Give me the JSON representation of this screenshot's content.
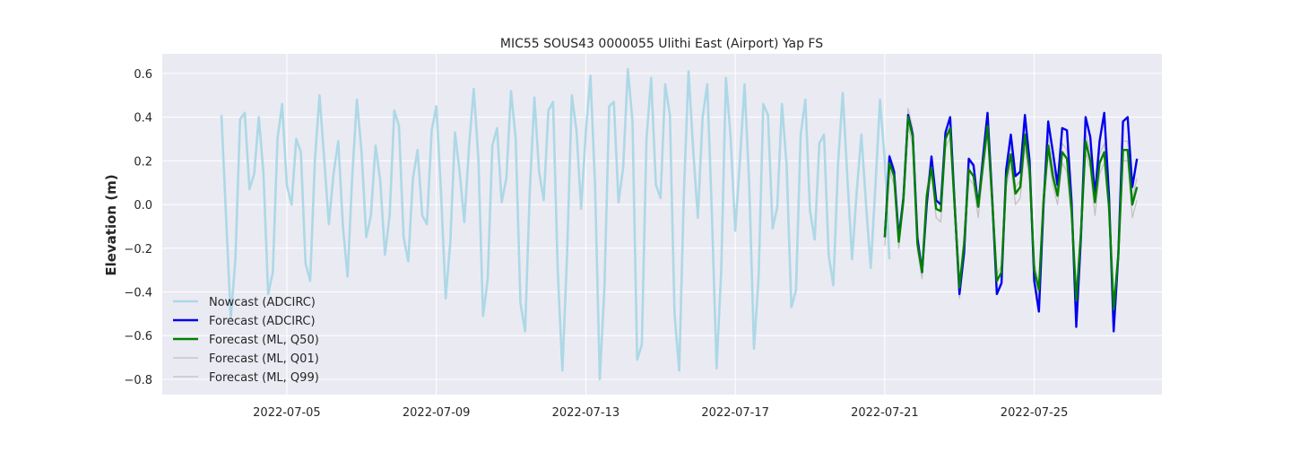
{
  "chart_data": {
    "type": "line",
    "title": "MIC55 SOUS43 0000055 Ulithi East (Airport) Yap FS",
    "xlabel": "",
    "ylabel": "Elevation (m)",
    "xlim": [
      "2022-07-01T16:00",
      "2022-07-28T10:00"
    ],
    "ylim": [
      -0.87,
      0.69
    ],
    "grid": true,
    "legend_position": "lower-left",
    "x_ticks": [
      "2022-07-05",
      "2022-07-09",
      "2022-07-13",
      "2022-07-17",
      "2022-07-21",
      "2022-07-25"
    ],
    "y_ticks": [
      -0.8,
      -0.6,
      -0.4,
      -0.2,
      0.0,
      0.2,
      0.4,
      0.6
    ],
    "y_tick_labels": [
      "−0.8",
      "−0.6",
      "−0.4",
      "−0.2",
      "0.0",
      "0.2",
      "0.4",
      "0.6"
    ],
    "series": [
      {
        "name": "Nowcast (ADCIRC)",
        "color": "#add8e6",
        "start": "2022-07-03T06:00",
        "step_hours": 3,
        "values": [
          0.41,
          -0.06,
          -0.52,
          -0.25,
          0.39,
          0.42,
          0.07,
          0.14,
          0.4,
          0.14,
          -0.41,
          -0.31,
          0.3,
          0.46,
          0.09,
          0.0,
          0.3,
          0.24,
          -0.27,
          -0.35,
          0.2,
          0.5,
          0.21,
          -0.09,
          0.14,
          0.29,
          -0.1,
          -0.33,
          0.13,
          0.48,
          0.24,
          -0.15,
          -0.05,
          0.27,
          0.11,
          -0.23,
          -0.05,
          0.43,
          0.36,
          -0.15,
          -0.26,
          0.12,
          0.25,
          -0.05,
          -0.09,
          0.34,
          0.45,
          0.06,
          -0.43,
          -0.17,
          0.33,
          0.15,
          -0.08,
          0.26,
          0.53,
          0.21,
          -0.51,
          -0.34,
          0.27,
          0.35,
          0.01,
          0.12,
          0.52,
          0.3,
          -0.45,
          -0.58,
          0.06,
          0.49,
          0.15,
          0.02,
          0.43,
          0.47,
          -0.3,
          -0.76,
          -0.22,
          0.5,
          0.34,
          -0.02,
          0.33,
          0.59,
          0.08,
          -0.8,
          -0.38,
          0.45,
          0.47,
          0.01,
          0.17,
          0.62,
          0.38,
          -0.71,
          -0.64,
          0.3,
          0.58,
          0.09,
          0.03,
          0.55,
          0.41,
          -0.5,
          -0.76,
          0.05,
          0.61,
          0.25,
          -0.06,
          0.4,
          0.55,
          -0.05,
          -0.75,
          -0.3,
          0.58,
          0.31,
          -0.12,
          0.2,
          0.55,
          0.08,
          -0.66,
          -0.33,
          0.46,
          0.41,
          -0.11,
          -0.01,
          0.46,
          0.18,
          -0.47,
          -0.39,
          0.32,
          0.48,
          -0.03,
          -0.16,
          0.28,
          0.32,
          -0.23,
          -0.37,
          0.19,
          0.51,
          0.12,
          -0.25,
          0.06,
          0.32,
          0.0,
          -0.29,
          0.08,
          0.48,
          0.2,
          -0.25
        ]
      },
      {
        "name": "Forecast (ADCIRC)",
        "color": "#0000ee",
        "start": "2022-07-21T00:00",
        "step_hours": 3,
        "values": [
          -0.15,
          0.22,
          0.15,
          -0.15,
          0.03,
          0.41,
          0.32,
          -0.15,
          -0.31,
          0.0,
          0.22,
          0.02,
          0.0,
          0.33,
          0.4,
          -0.01,
          -0.41,
          -0.22,
          0.21,
          0.18,
          -0.01,
          0.21,
          0.42,
          0.03,
          -0.41,
          -0.36,
          0.16,
          0.32,
          0.13,
          0.15,
          0.41,
          0.2,
          -0.35,
          -0.49,
          0.0,
          0.38,
          0.24,
          0.09,
          0.35,
          0.34,
          0.01,
          -0.56,
          -0.15,
          0.4,
          0.31,
          0.04,
          0.29,
          0.42,
          0.04,
          -0.58,
          -0.23,
          0.38,
          0.4,
          0.08,
          0.21
        ]
      },
      {
        "name": "Forecast (ML, Q50)",
        "color": "#008000",
        "start": "2022-07-21T00:00",
        "step_hours": 3,
        "values": [
          -0.15,
          0.19,
          0.13,
          -0.17,
          0.02,
          0.4,
          0.31,
          -0.18,
          -0.31,
          0.04,
          0.17,
          -0.02,
          -0.03,
          0.3,
          0.35,
          -0.02,
          -0.38,
          -0.18,
          0.16,
          0.13,
          -0.01,
          0.18,
          0.36,
          0.02,
          -0.35,
          -0.31,
          0.12,
          0.23,
          0.05,
          0.08,
          0.32,
          0.16,
          -0.3,
          -0.39,
          0.02,
          0.27,
          0.13,
          0.04,
          0.24,
          0.21,
          -0.03,
          -0.44,
          -0.13,
          0.29,
          0.2,
          0.01,
          0.19,
          0.24,
          -0.01,
          -0.48,
          -0.23,
          0.25,
          0.25,
          0.0,
          0.08
        ]
      },
      {
        "name": "Forecast (ML, Q01)",
        "color": "#c0c0c0",
        "start": "2022-07-21T00:00",
        "step_hours": 3,
        "values": [
          -0.19,
          0.16,
          0.09,
          -0.2,
          -0.01,
          0.36,
          0.27,
          -0.21,
          -0.34,
          0.01,
          0.14,
          -0.06,
          -0.08,
          0.26,
          0.31,
          -0.06,
          -0.43,
          -0.21,
          0.12,
          0.09,
          -0.06,
          0.14,
          0.32,
          -0.03,
          -0.4,
          -0.35,
          0.08,
          0.18,
          0.0,
          0.03,
          0.26,
          0.11,
          -0.34,
          -0.43,
          -0.02,
          0.23,
          0.09,
          0.0,
          0.19,
          0.15,
          -0.07,
          -0.47,
          -0.17,
          0.24,
          0.16,
          -0.05,
          0.14,
          0.19,
          -0.04,
          -0.51,
          -0.26,
          0.2,
          0.2,
          -0.06,
          0.02
        ]
      },
      {
        "name": "Forecast (ML, Q99)",
        "color": "#c0c0c0",
        "start": "2022-07-21T00:00",
        "step_hours": 3,
        "values": [
          -0.13,
          0.23,
          0.17,
          -0.14,
          0.05,
          0.44,
          0.35,
          -0.15,
          -0.28,
          0.07,
          0.21,
          0.02,
          0.0,
          0.34,
          0.39,
          0.01,
          -0.35,
          -0.15,
          0.2,
          0.17,
          0.02,
          0.22,
          0.4,
          0.05,
          -0.32,
          -0.28,
          0.16,
          0.27,
          0.08,
          0.11,
          0.36,
          0.19,
          -0.27,
          -0.36,
          0.05,
          0.31,
          0.17,
          0.07,
          0.28,
          0.25,
          0.0,
          -0.41,
          -0.1,
          0.33,
          0.24,
          0.04,
          0.23,
          0.28,
          0.02,
          -0.45,
          -0.2,
          0.29,
          0.29,
          0.03,
          0.12
        ]
      }
    ]
  }
}
